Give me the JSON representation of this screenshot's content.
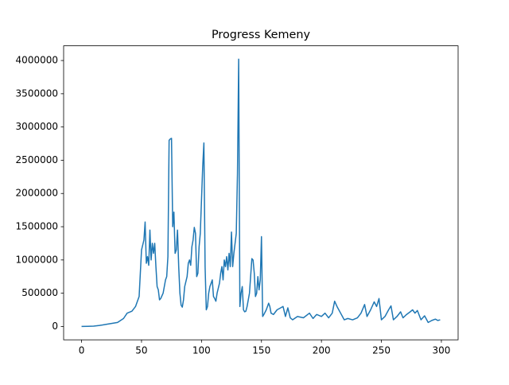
{
  "chart_data": {
    "type": "line",
    "title": "Progress Kemeny",
    "x": [
      0,
      5,
      10,
      15,
      20,
      25,
      30,
      35,
      38,
      42,
      45,
      48,
      50,
      52,
      53,
      54,
      55,
      56,
      57,
      58,
      59,
      60,
      61,
      62,
      63,
      64,
      65,
      66,
      68,
      70,
      71,
      72,
      73,
      74,
      75,
      76,
      77,
      78,
      79,
      80,
      81,
      82,
      83,
      84,
      85,
      86,
      88,
      89,
      90,
      91,
      92,
      93,
      94,
      95,
      96,
      97,
      98,
      99,
      100,
      101,
      102,
      103,
      104,
      105,
      106,
      107,
      108,
      109,
      110,
      111,
      112,
      113,
      115,
      116,
      117,
      118,
      119,
      120,
      121,
      122,
      123,
      124,
      125,
      126,
      127,
      128,
      129,
      130,
      131,
      132,
      133,
      134,
      135,
      136,
      137,
      138,
      140,
      142,
      143,
      144,
      145,
      146,
      147,
      148,
      149,
      150,
      151,
      152,
      154,
      156,
      157,
      158,
      160,
      163,
      166,
      168,
      170,
      172,
      174,
      176,
      180,
      185,
      190,
      193,
      196,
      200,
      203,
      206,
      209,
      211,
      213,
      216,
      219,
      222,
      226,
      230,
      233,
      236,
      238,
      241,
      244,
      246,
      248,
      250,
      253,
      256,
      258,
      260,
      263,
      266,
      268,
      271,
      274,
      276,
      278,
      280,
      283,
      286,
      289,
      292,
      295,
      297,
      299
    ],
    "series": [
      {
        "color": "#1f77b4",
        "values": [
          0,
          2000,
          5000,
          15000,
          30000,
          45000,
          60000,
          120000,
          200000,
          230000,
          300000,
          450000,
          1150000,
          1300000,
          1570000,
          950000,
          1050000,
          920000,
          1450000,
          1000000,
          1250000,
          1100000,
          1250000,
          900000,
          600000,
          550000,
          400000,
          420000,
          500000,
          700000,
          750000,
          1050000,
          2800000,
          2820000,
          2830000,
          1500000,
          1720000,
          1100000,
          1150000,
          1450000,
          900000,
          500000,
          320000,
          290000,
          400000,
          600000,
          750000,
          950000,
          1000000,
          920000,
          1200000,
          1300000,
          1490000,
          1400000,
          750000,
          800000,
          1200000,
          1400000,
          1900000,
          2400000,
          2760000,
          900000,
          250000,
          300000,
          500000,
          600000,
          650000,
          700000,
          450000,
          420000,
          380000,
          500000,
          650000,
          800000,
          900000,
          700000,
          1000000,
          900000,
          1050000,
          850000,
          1100000,
          900000,
          1420000,
          900000,
          1100000,
          1250000,
          1400000,
          2300000,
          4020000,
          300000,
          500000,
          600000,
          250000,
          220000,
          230000,
          300000,
          500000,
          1020000,
          1000000,
          800000,
          450000,
          500000,
          750000,
          550000,
          700000,
          1350000,
          150000,
          180000,
          250000,
          350000,
          300000,
          200000,
          180000,
          250000,
          280000,
          300000,
          150000,
          280000,
          130000,
          100000,
          150000,
          130000,
          200000,
          120000,
          180000,
          150000,
          200000,
          130000,
          200000,
          380000,
          300000,
          200000,
          100000,
          120000,
          100000,
          130000,
          200000,
          330000,
          150000,
          250000,
          370000,
          300000,
          420000,
          100000,
          150000,
          250000,
          310000,
          100000,
          150000,
          220000,
          130000,
          180000,
          220000,
          250000,
          200000,
          240000,
          100000,
          160000,
          60000,
          90000,
          110000,
          90000,
          100000
        ]
      }
    ],
    "xlim": [
      -14.95,
      313.95
    ],
    "xticks": [
      0,
      50,
      100,
      150,
      200,
      250,
      300
    ],
    "ylim": [
      -201000,
      4221000
    ],
    "yticks": [
      0,
      500000,
      1000000,
      1500000,
      2000000,
      2500000,
      3000000,
      3500000,
      4000000
    ]
  }
}
